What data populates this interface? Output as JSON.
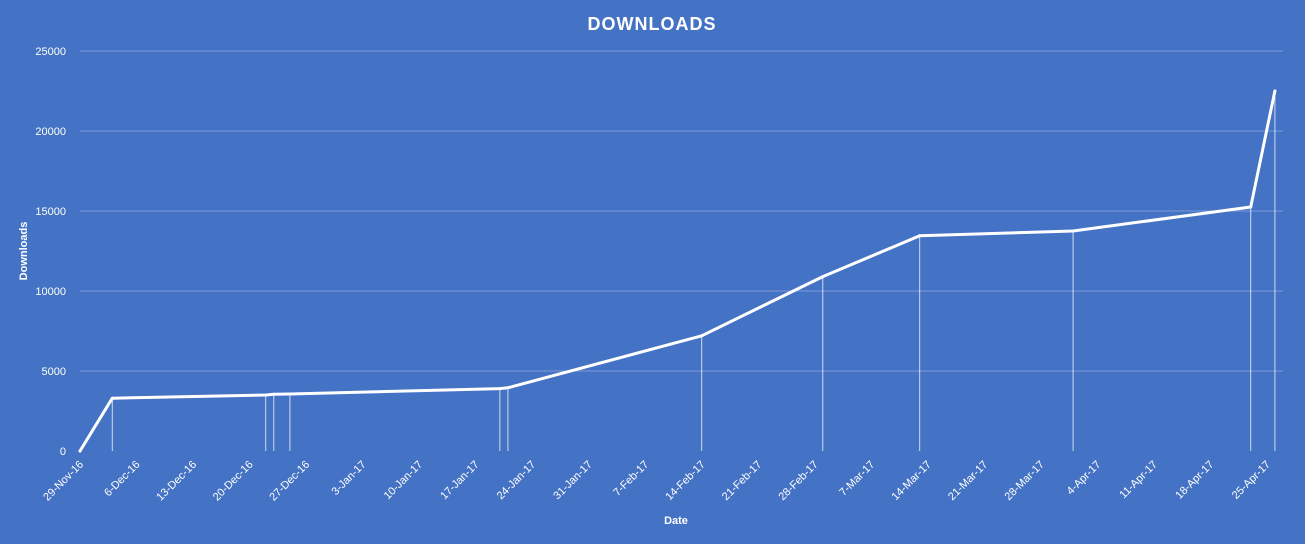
{
  "chart_data": {
    "type": "line",
    "title": "DOWNLOADS",
    "xlabel": "Date",
    "ylabel": "Downloads",
    "ylim": [
      0,
      25000
    ],
    "xlim": [
      "2016-11-29",
      "2017-04-27"
    ],
    "grid": true,
    "legend": "none",
    "colors": {
      "background": "#4472C4",
      "line": "#FFFFFF",
      "grid": "#7A9BD8"
    },
    "y_ticks": [
      "0",
      "5000",
      "10000",
      "15000",
      "20000",
      "25000"
    ],
    "x_ticks": [
      {
        "date": "2016-11-29",
        "label": "29-Nov-16"
      },
      {
        "date": "2016-12-06",
        "label": "6-Dec-16"
      },
      {
        "date": "2016-12-13",
        "label": "13-Dec-16"
      },
      {
        "date": "2016-12-20",
        "label": "20-Dec-16"
      },
      {
        "date": "2016-12-27",
        "label": "27-Dec-16"
      },
      {
        "date": "2017-01-03",
        "label": "3-Jan-17"
      },
      {
        "date": "2017-01-10",
        "label": "10-Jan-17"
      },
      {
        "date": "2017-01-17",
        "label": "17-Jan-17"
      },
      {
        "date": "2017-01-24",
        "label": "24-Jan-17"
      },
      {
        "date": "2017-01-31",
        "label": "31-Jan-17"
      },
      {
        "date": "2017-02-07",
        "label": "7-Feb-17"
      },
      {
        "date": "2017-02-14",
        "label": "14-Feb-17"
      },
      {
        "date": "2017-02-21",
        "label": "21-Feb-17"
      },
      {
        "date": "2017-02-28",
        "label": "28-Feb-17"
      },
      {
        "date": "2017-03-07",
        "label": "7-Mar-17"
      },
      {
        "date": "2017-03-14",
        "label": "14-Mar-17"
      },
      {
        "date": "2017-03-21",
        "label": "21-Mar-17"
      },
      {
        "date": "2017-03-28",
        "label": "28-Mar-17"
      },
      {
        "date": "2017-04-04",
        "label": "4-Apr-17"
      },
      {
        "date": "2017-04-11",
        "label": "11-Apr-17"
      },
      {
        "date": "2017-04-18",
        "label": "18-Apr-17"
      },
      {
        "date": "2017-04-25",
        "label": "25-Apr-17"
      }
    ],
    "series": [
      {
        "points": [
          {
            "date": "2016-11-29",
            "value": 0
          },
          {
            "date": "2016-12-03",
            "value": 3300
          },
          {
            "date": "2016-12-22",
            "value": 3500
          },
          {
            "date": "2016-12-23",
            "value": 3550
          },
          {
            "date": "2016-12-25",
            "value": 3560
          },
          {
            "date": "2017-01-20",
            "value": 3900
          },
          {
            "date": "2017-01-21",
            "value": 3950
          },
          {
            "date": "2017-02-14",
            "value": 7200
          },
          {
            "date": "2017-03-01",
            "value": 10900
          },
          {
            "date": "2017-03-13",
            "value": 13450
          },
          {
            "date": "2017-04-01",
            "value": 13750
          },
          {
            "date": "2017-04-23",
            "value": 15250
          },
          {
            "date": "2017-04-26",
            "value": 22500
          }
        ]
      }
    ]
  }
}
